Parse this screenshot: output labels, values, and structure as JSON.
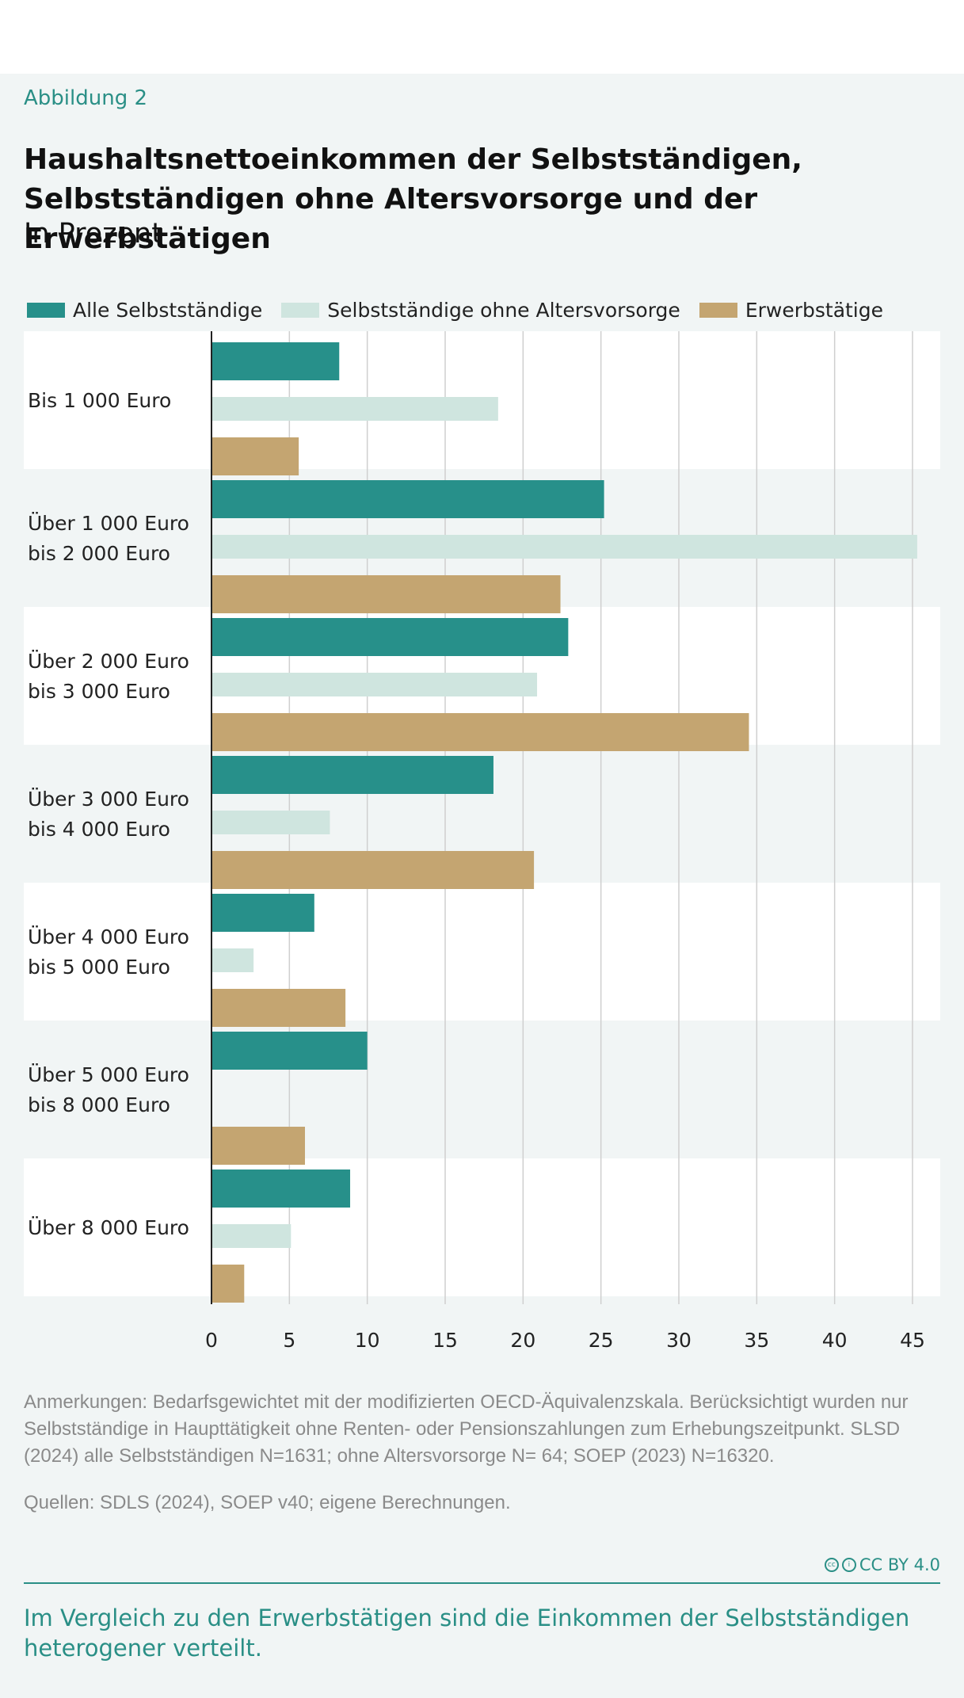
{
  "figure_label": "Abbildung 2",
  "title_line1": "Haushaltsnettoeinkommen der Selbstständigen,",
  "title_line2": "Selbstständigen ohne Altersvorsorge und der Erwerbstätigen",
  "subtitle": "In Prozent",
  "colors": {
    "s1": "#27908a",
    "s2": "#cfe5df",
    "s3": "#c4a571",
    "teal_text": "#2a8f86"
  },
  "chart_data": {
    "type": "bar",
    "orientation": "horizontal",
    "categories": [
      [
        "Bis 1 000 Euro"
      ],
      [
        "Über 1 000 Euro",
        "bis 2 000 Euro"
      ],
      [
        "Über 2 000 Euro",
        "bis 3 000 Euro"
      ],
      [
        "Über 3 000 Euro",
        "bis 4 000 Euro"
      ],
      [
        "Über 4 000 Euro",
        "bis 5 000 Euro"
      ],
      [
        "Über 5 000 Euro",
        "bis 8 000 Euro"
      ],
      [
        "Über 8 000 Euro"
      ]
    ],
    "series": [
      {
        "name": "Alle Selbstständige",
        "values": [
          8.2,
          25.2,
          22.9,
          18.1,
          6.6,
          10.0,
          8.9
        ]
      },
      {
        "name": "Selbstständige ohne Altersvorsorge",
        "values": [
          18.4,
          45.3,
          20.9,
          7.6,
          2.7,
          0,
          5.1
        ]
      },
      {
        "name": "Erwerbstätige",
        "values": [
          5.6,
          22.4,
          34.5,
          20.7,
          8.6,
          6.0,
          2.1
        ]
      }
    ],
    "xlim": [
      0,
      45
    ],
    "xticks": [
      0,
      5,
      10,
      15,
      20,
      25,
      30,
      35,
      40,
      45
    ],
    "grid": true,
    "legend": "top-left",
    "title": "Haushaltsnettoeinkommen der Selbstständigen, Selbstständigen ohne Altersvorsorge und der Erwerbstätigen",
    "xlabel": "In Prozent"
  },
  "notes": "Anmerkungen: Bedarfsgewichtet mit der modifizierten OECD-Äquivalenzskala. Berücksichtigt wurden nur Selbstständige in Haupttätigkeit ohne Renten- oder Pensionszahlungen zum Erhebungszeitpunkt. SLSD (2024) alle Selbstständigen N=1631; ohne Altersvorsorge N= 64; SOEP (2023) N=16320.",
  "sources": "Quellen: SDLS (2024), SOEP v40; eigene Berechnungen.",
  "license": "CC BY 4.0",
  "caption": "Im Vergleich zu den Erwerbstätigen sind die Einkommen der Selbstständigen heterogener verteilt."
}
